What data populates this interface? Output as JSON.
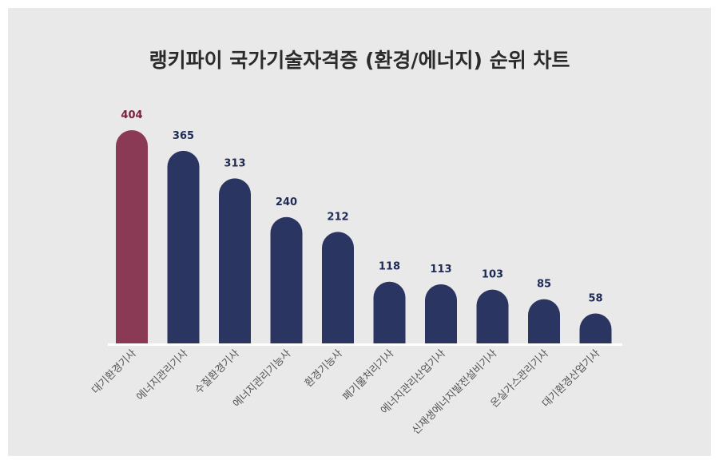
{
  "chart_data": {
    "type": "bar",
    "title": "랭키파이 국가기술자격증 (환경/에너지) 순위 차트",
    "categories": [
      "대기환경기사",
      "에너지관리기사",
      "수질환경기사",
      "에너지관리기능사",
      "환경기능사",
      "폐기물처리기사",
      "에너지관리산업기사",
      "신재생에너지발전설비기사",
      "온실가스관리기사",
      "대기환경산업기사"
    ],
    "values": [
      404,
      365,
      313,
      240,
      212,
      118,
      113,
      103,
      85,
      58
    ],
    "xlabel": "",
    "ylabel": "",
    "ylim": [
      0,
      404
    ],
    "grid": false,
    "colors": {
      "highlight": "#8b3a55",
      "default": "#2a3561",
      "highlight_label": "#7a2040",
      "default_label": "#1f2a55",
      "axis": "#ffffff",
      "category_label": "#555555"
    }
  }
}
